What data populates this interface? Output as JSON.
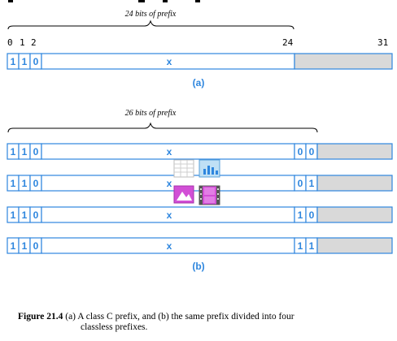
{
  "panel_a": {
    "brace_label": "24 bits of prefix",
    "ticks": [
      "0",
      "1",
      "2",
      "24",
      "31"
    ],
    "bits": [
      "1",
      "1",
      "0"
    ],
    "x_label": "x",
    "panel_label": "(a)"
  },
  "panel_b": {
    "brace_label": "26 bits of prefix",
    "rows": [
      {
        "bits": [
          "1",
          "1",
          "0"
        ],
        "x_label": "x",
        "suffix": [
          "0",
          "0"
        ]
      },
      {
        "bits": [
          "1",
          "1",
          "0"
        ],
        "x_label": "x",
        "suffix": [
          "0",
          "1"
        ]
      },
      {
        "bits": [
          "1",
          "1",
          "0"
        ],
        "x_label": "x",
        "suffix": [
          "1",
          "0"
        ]
      },
      {
        "bits": [
          "1",
          "1",
          "0"
        ],
        "x_label": "x",
        "suffix": [
          "1",
          "1"
        ]
      }
    ],
    "panel_label": "(b)"
  },
  "caption": {
    "lead": "Figure 21.4",
    "line1": "(a) A class C prefix, and (b) the same prefix divided into four",
    "line2": "classless prefixes."
  },
  "overlay_icons": [
    "table-icon",
    "bar-chart-icon",
    "image-icon",
    "film-icon"
  ],
  "colors": {
    "accent": "#2e86de",
    "grey_fill": "#d9d9d9",
    "icon_purple": "#d24fd6"
  }
}
